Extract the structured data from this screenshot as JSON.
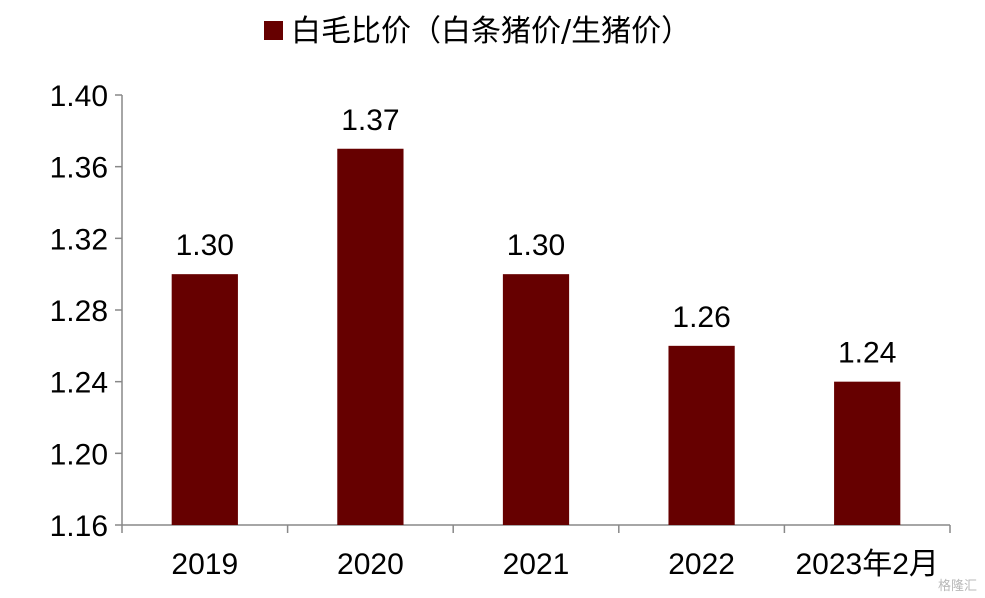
{
  "chart_data": {
    "type": "bar",
    "categories": [
      "2019",
      "2020",
      "2021",
      "2022",
      "2023年2月"
    ],
    "series": [
      {
        "name": "白毛比价（白条猪价/生猪价）",
        "values": [
          1.3,
          1.37,
          1.3,
          1.26,
          1.24
        ]
      }
    ],
    "data_labels": [
      "1.30",
      "1.37",
      "1.30",
      "1.26",
      "1.24"
    ],
    "yticks": [
      "1.16",
      "1.20",
      "1.24",
      "1.28",
      "1.32",
      "1.36",
      "1.40"
    ],
    "ylim": [
      1.16,
      1.4
    ],
    "legend_position": "top",
    "grid": false,
    "colors": {
      "bar": "#660000",
      "axis": "#888888"
    }
  },
  "watermark": "格隆汇"
}
